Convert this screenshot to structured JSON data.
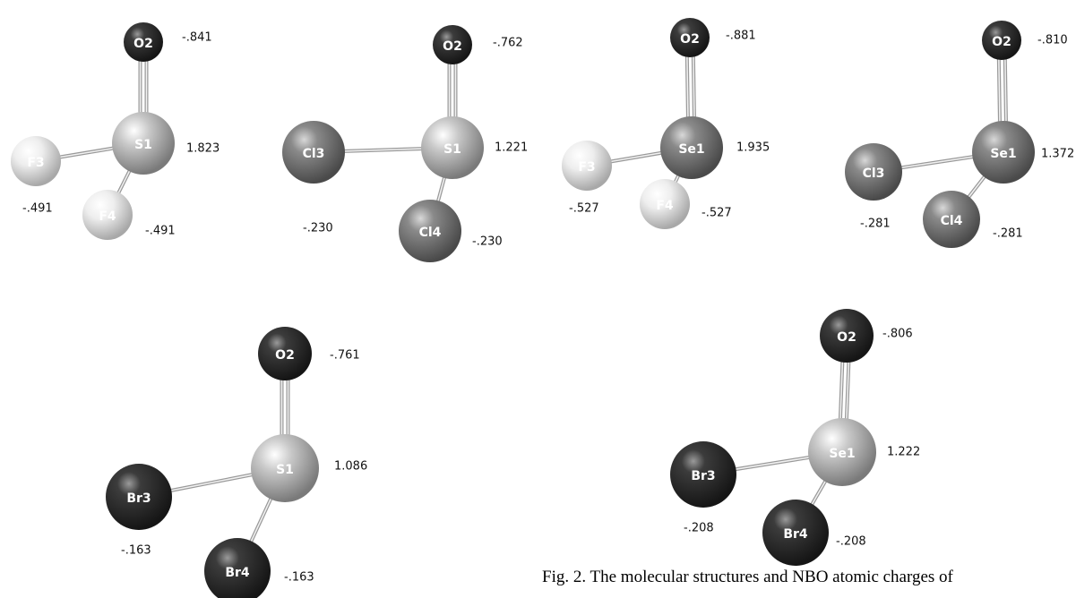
{
  "molecules": [
    {
      "atoms": [
        {
          "label": "O2",
          "charge": "-.841"
        },
        {
          "label": "S1",
          "charge": "1.823"
        },
        {
          "label": "F3",
          "charge": "-.491"
        },
        {
          "label": "F4",
          "charge": "-.491"
        }
      ]
    },
    {
      "atoms": [
        {
          "label": "O2",
          "charge": "-.762"
        },
        {
          "label": "S1",
          "charge": "1.221"
        },
        {
          "label": "Cl3",
          "charge": "-.230"
        },
        {
          "label": "Cl4",
          "charge": "-.230"
        }
      ]
    },
    {
      "atoms": [
        {
          "label": "O2",
          "charge": "-.881"
        },
        {
          "label": "Se1",
          "charge": "1.935"
        },
        {
          "label": "F3",
          "charge": "-.527"
        },
        {
          "label": "F4",
          "charge": "-.527"
        }
      ]
    },
    {
      "atoms": [
        {
          "label": "O2",
          "charge": "-.810"
        },
        {
          "label": "Se1",
          "charge": "1.372"
        },
        {
          "label": "Cl3",
          "charge": "-.281"
        },
        {
          "label": "Cl4",
          "charge": "-.281"
        }
      ]
    },
    {
      "atoms": [
        {
          "label": "O2",
          "charge": "-.761"
        },
        {
          "label": "S1",
          "charge": "1.086"
        },
        {
          "label": "Br3",
          "charge": "-.163"
        },
        {
          "label": "Br4",
          "charge": "-.163"
        }
      ]
    },
    {
      "atoms": [
        {
          "label": "O2",
          "charge": "-.806"
        },
        {
          "label": "Se1",
          "charge": "1.222"
        },
        {
          "label": "Br3",
          "charge": "-.208"
        },
        {
          "label": "Br4",
          "charge": "-.208"
        }
      ]
    }
  ],
  "caption": "Fig. 2. The molecular structures and NBO atomic charges of"
}
